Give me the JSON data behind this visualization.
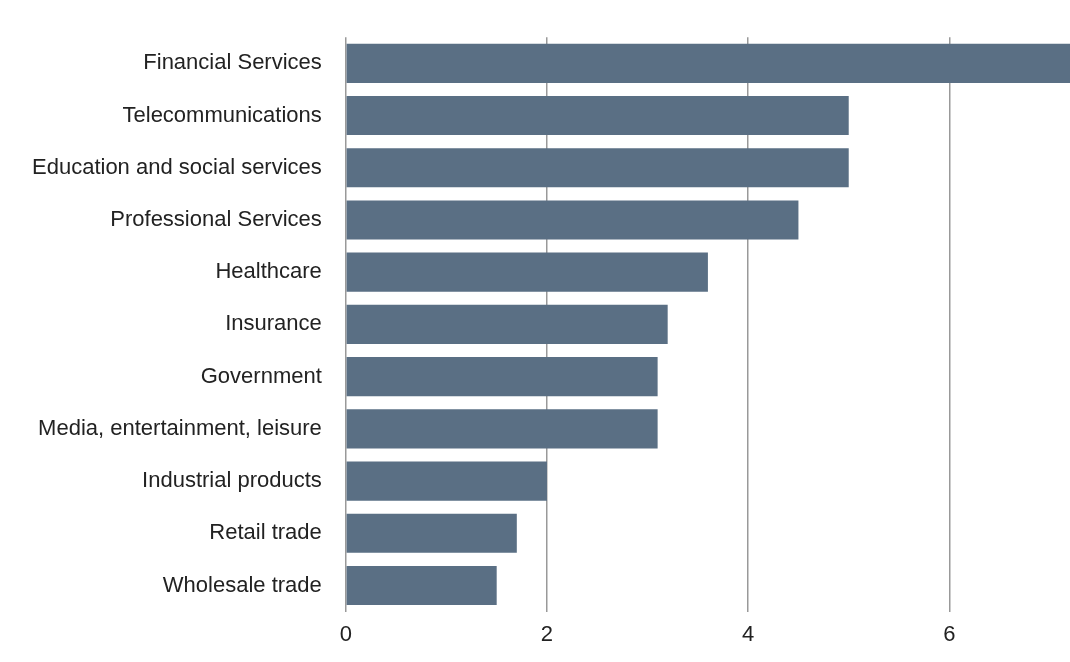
{
  "chart_data": {
    "type": "bar",
    "orientation": "horizontal",
    "categories": [
      "Financial Services",
      "Telecommunications",
      "Education and social services",
      "Professional Services",
      "Healthcare",
      "Insurance",
      "Government",
      "Media, entertainment, leisure",
      "Industrial products",
      "Retail trade",
      "Wholesale trade"
    ],
    "values": [
      7.2,
      5.0,
      5.0,
      4.5,
      3.6,
      3.2,
      3.1,
      3.1,
      2.0,
      1.7,
      1.5
    ],
    "color": "#5a6f84",
    "xlim": [
      0,
      7.2
    ],
    "xticks": [
      0,
      2,
      4,
      6
    ],
    "grid": "x",
    "legend": false
  }
}
